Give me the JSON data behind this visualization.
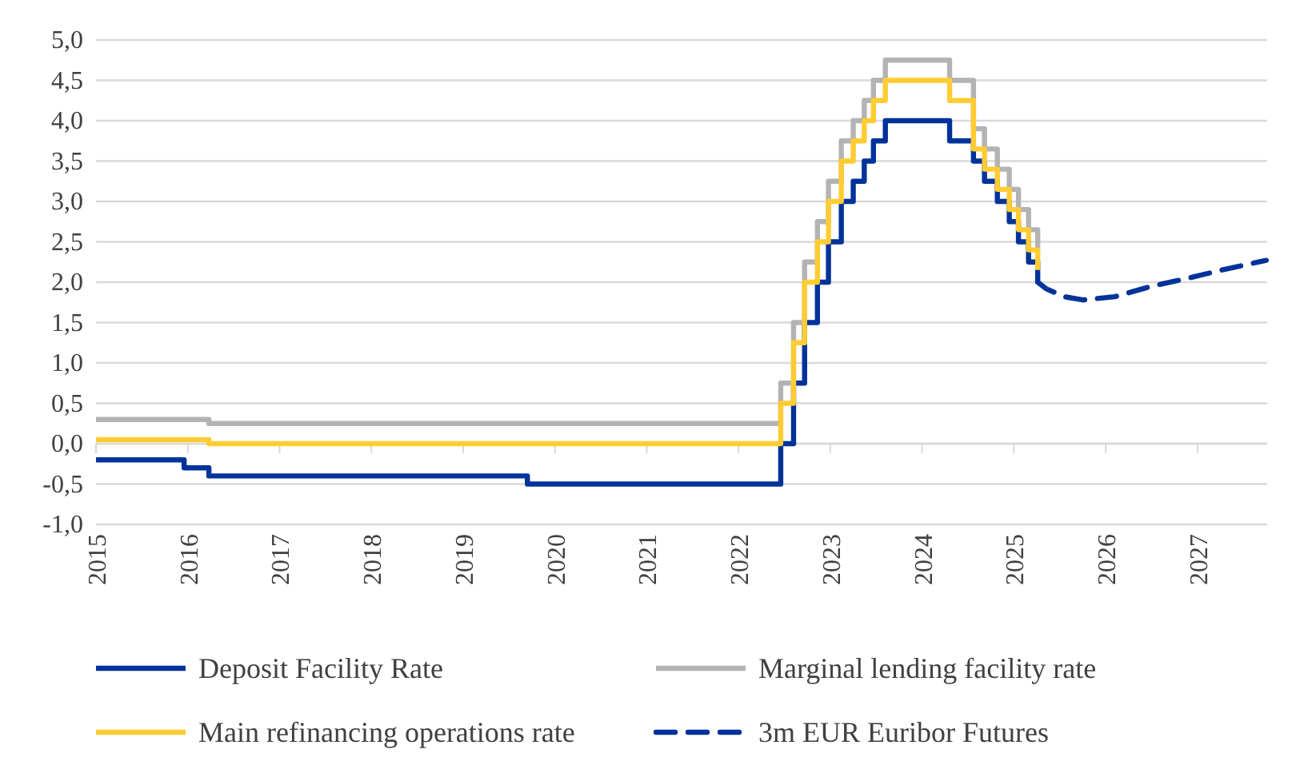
{
  "chart_data": {
    "type": "step",
    "xlim": [
      2015,
      2027.76
    ],
    "xticks": [
      2015,
      2016,
      2017,
      2018,
      2019,
      2020,
      2021,
      2022,
      2023,
      2024,
      2025,
      2026,
      2027
    ],
    "ylim": [
      -1,
      5
    ],
    "yticks": [
      {
        "value": -1,
        "label": "-1,0"
      },
      {
        "value": -0.5,
        "label": "-0,5"
      },
      {
        "value": 0,
        "label": "0,0"
      },
      {
        "value": 0.5,
        "label": "0,5"
      },
      {
        "value": 1,
        "label": "1,0"
      },
      {
        "value": 1.5,
        "label": "1,5"
      },
      {
        "value": 2,
        "label": "2,0"
      },
      {
        "value": 2.5,
        "label": "2,5"
      },
      {
        "value": 3,
        "label": "3,0"
      },
      {
        "value": 3.5,
        "label": "3,5"
      },
      {
        "value": 4,
        "label": "4,0"
      },
      {
        "value": 4.5,
        "label": "4,5"
      },
      {
        "value": 5,
        "label": "5,0"
      }
    ],
    "grid": "y",
    "legend": "bottom",
    "series": [
      {
        "name": "Deposit Facility Rate",
        "color": "#003399",
        "x": [
          2015,
          2015.96,
          2016.23,
          2019.7,
          2022.46,
          2022.6,
          2022.72,
          2022.86,
          2022.98,
          2023.12,
          2023.25,
          2023.37,
          2023.47,
          2023.6,
          2024.3,
          2024.56,
          2024.68,
          2024.82,
          2024.95,
          2025.05,
          2025.16,
          2025.26
        ],
        "values": [
          -0.2,
          -0.3,
          -0.4,
          -0.5,
          0,
          0.75,
          1.5,
          2,
          2.5,
          3,
          3.25,
          3.5,
          3.75,
          4,
          3.75,
          3.5,
          3.25,
          3,
          2.75,
          2.5,
          2.25,
          2
        ]
      },
      {
        "name": "Marginal lending facility rate",
        "color": "#b3b3b3",
        "x": [
          2015,
          2016.23,
          2022.46,
          2022.6,
          2022.72,
          2022.86,
          2022.98,
          2023.12,
          2023.25,
          2023.37,
          2023.47,
          2023.6,
          2024.3,
          2024.56,
          2024.68,
          2024.82,
          2024.95,
          2025.05,
          2025.16,
          2025.26
        ],
        "values": [
          0.3,
          0.25,
          0.75,
          1.5,
          2.25,
          2.75,
          3.25,
          3.75,
          4,
          4.25,
          4.5,
          4.75,
          4.5,
          3.9,
          3.65,
          3.4,
          3.15,
          2.9,
          2.65,
          2.4
        ]
      },
      {
        "name": "Main refinancing operations rate",
        "color": "#ffcc33",
        "x": [
          2015,
          2016.23,
          2022.46,
          2022.6,
          2022.72,
          2022.86,
          2022.98,
          2023.12,
          2023.25,
          2023.37,
          2023.47,
          2023.6,
          2024.3,
          2024.56,
          2024.68,
          2024.82,
          2024.95,
          2025.05,
          2025.16,
          2025.26
        ],
        "values": [
          0.05,
          0,
          0.5,
          1.25,
          2,
          2.5,
          3,
          3.5,
          3.75,
          4,
          4.25,
          4.5,
          4.25,
          3.65,
          3.4,
          3.15,
          2.9,
          2.65,
          2.4,
          2.15
        ]
      },
      {
        "name": "3m EUR Euribor Futures",
        "type": "line",
        "line_style": "dashed",
        "color": "#003399",
        "x": [
          2025.26,
          2025.35,
          2025.55,
          2025.75,
          2026.1,
          2026.5,
          2026.9,
          2027.3,
          2027.75
        ],
        "values": [
          2,
          1.92,
          1.82,
          1.78,
          1.82,
          1.95,
          2.05,
          2.16,
          2.27
        ]
      }
    ]
  }
}
